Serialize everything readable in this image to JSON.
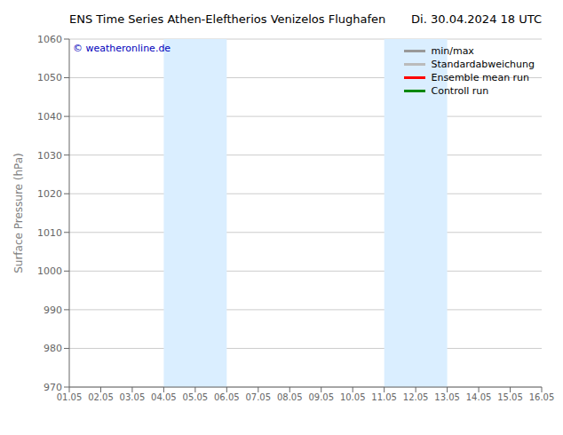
{
  "chart_data": {
    "type": "line",
    "title": "ENS Time Series Athen-Eleftherios Venizelos Flughafen",
    "subtitle": "Di. 30.04.2024 18 UTC",
    "y_label": "Surface Pressure (hPa)",
    "categories": [
      "01.05",
      "02.05",
      "03.05",
      "04.05",
      "05.05",
      "06.05",
      "07.05",
      "08.05",
      "09.05",
      "10.05",
      "11.05",
      "12.05",
      "13.05",
      "14.05",
      "15.05",
      "16.05"
    ],
    "series": [
      {
        "name": "min/max",
        "color": "#999999",
        "values": [
          null,
          null,
          null,
          null,
          null,
          null,
          null,
          null,
          null,
          null,
          null,
          null,
          null,
          null,
          null,
          null
        ]
      },
      {
        "name": "Standardabweichung",
        "color": "#bbbbbb",
        "values": [
          null,
          null,
          null,
          null,
          null,
          null,
          null,
          null,
          null,
          null,
          null,
          null,
          null,
          null,
          null,
          null
        ]
      },
      {
        "name": "Ensemble mean run",
        "color": "#ff0000",
        "values": [
          null,
          null,
          null,
          null,
          null,
          null,
          null,
          null,
          null,
          null,
          null,
          null,
          null,
          null,
          null,
          null
        ]
      },
      {
        "name": "Controll run",
        "color": "#008800",
        "values": [
          null,
          null,
          null,
          null,
          null,
          null,
          null,
          null,
          null,
          null,
          null,
          null,
          null,
          null,
          null,
          null
        ]
      }
    ],
    "bands": [
      {
        "from": "04.05",
        "to": "06.05",
        "color": "#daeeff"
      },
      {
        "from": "11.05",
        "to": "13.05",
        "color": "#daeeff"
      }
    ],
    "annotations": [
      {
        "text": "© weatheronline.de",
        "color": "#0000bb"
      }
    ],
    "ylim": [
      970,
      1060
    ],
    "yticks": [
      970,
      980,
      990,
      1000,
      1010,
      1020,
      1030,
      1040,
      1050,
      1060
    ],
    "grid": true,
    "legend": "upper right"
  }
}
